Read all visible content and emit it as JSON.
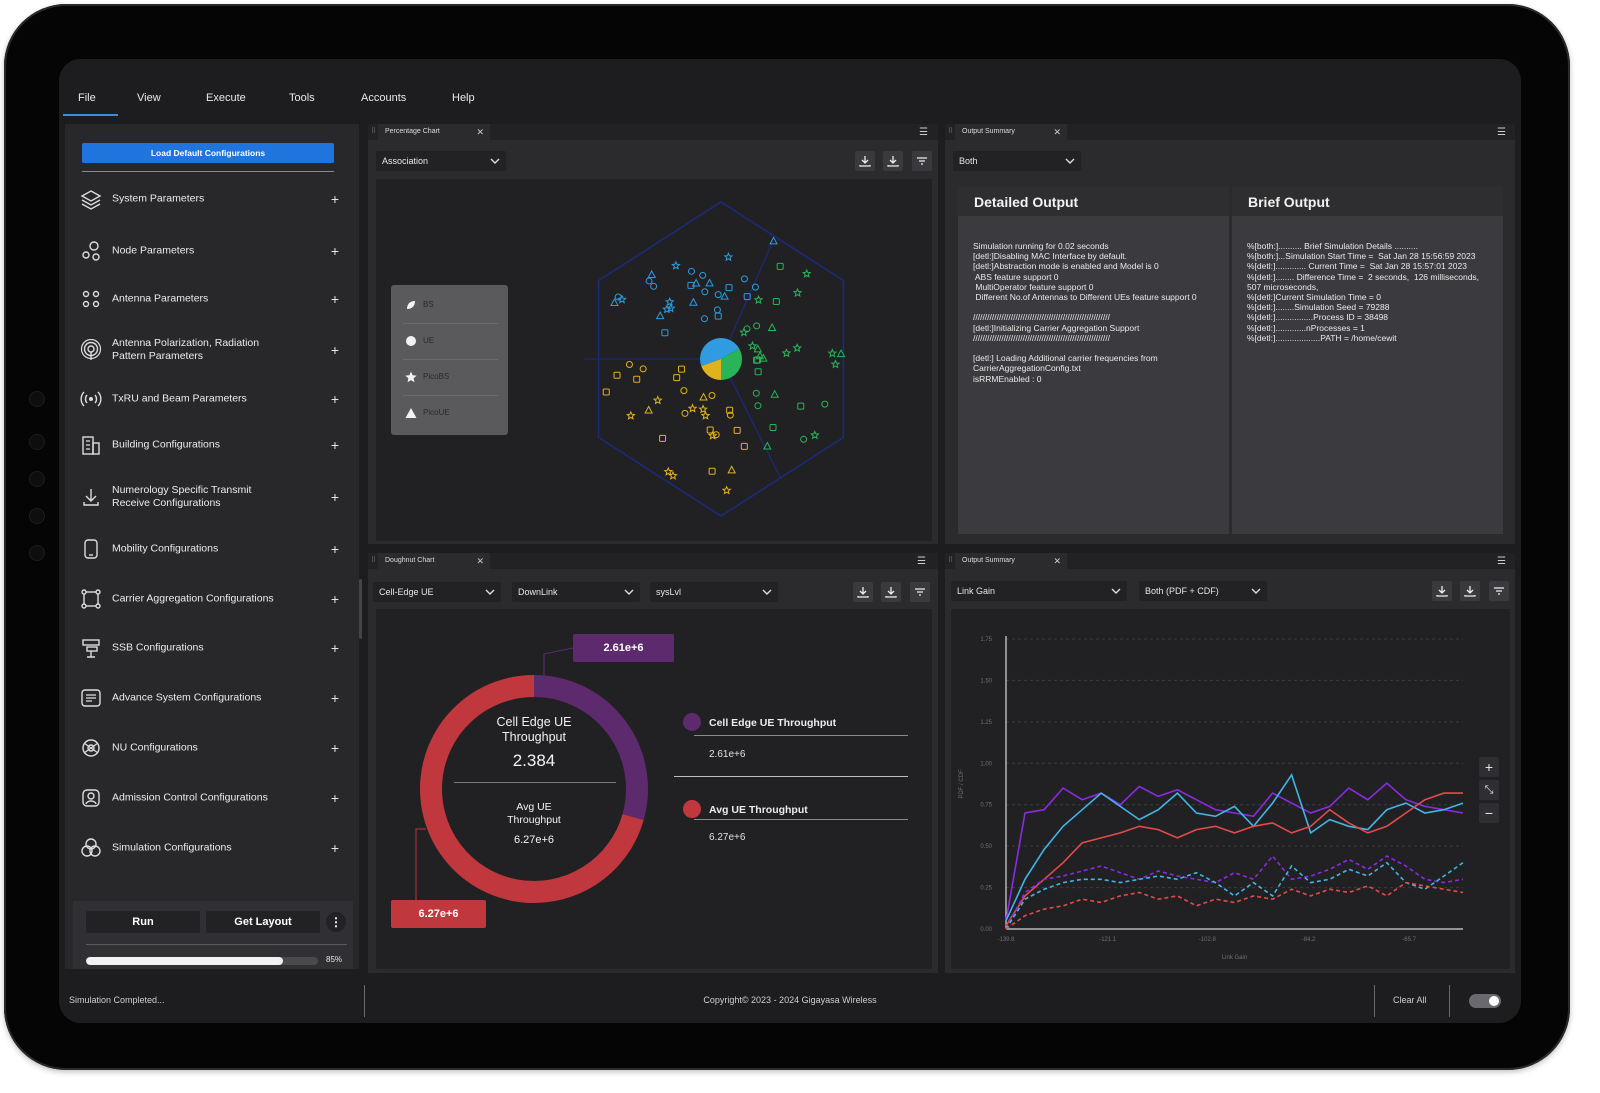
{
  "menu": {
    "items": [
      "File",
      "View",
      "Execute",
      "Tools",
      "Accounts",
      "Help"
    ],
    "active": "File"
  },
  "sidebar": {
    "load_button": "Load Default Configurations",
    "items": [
      {
        "label": "System Parameters",
        "icon": "layers-icon"
      },
      {
        "label": "Node Parameters",
        "icon": "nodes-icon"
      },
      {
        "label": "Antenna Parameters",
        "icon": "antenna-grid-icon"
      },
      {
        "label": "Antenna Polarization, Radiation\nPattern Parameters",
        "icon": "radiation-icon"
      },
      {
        "label": "TxRU and Beam Parameters",
        "icon": "broadcast-icon"
      },
      {
        "label": "Building Configurations",
        "icon": "building-icon"
      },
      {
        "label": "Numerology Specific Transmit\nReceive Configurations",
        "icon": "download-arrow-icon"
      },
      {
        "label": "Mobility Configurations",
        "icon": "mobile-icon"
      },
      {
        "label": "Carrier Aggregation Configurations",
        "icon": "aggregation-icon"
      },
      {
        "label": "SSB Configurations",
        "icon": "ssb-icon"
      },
      {
        "label": "Advance System Configurations",
        "icon": "settings-panel-icon"
      },
      {
        "label": "NU Configurations",
        "icon": "network-icon"
      },
      {
        "label": "Admission Control Configurations",
        "icon": "shield-user-icon"
      },
      {
        "label": "Simulation Configurations",
        "icon": "circles-icon"
      }
    ],
    "run_label": "Run",
    "layout_label": "Get Layout",
    "more_label": "⋮",
    "progress_value": 85,
    "progress_label": "85%"
  },
  "percentage_panel": {
    "tab": "Percentage Chart",
    "select": "Association",
    "legend": [
      {
        "label": "BS",
        "icon": "leaf-icon"
      },
      {
        "label": "UE",
        "icon": "circle-icon"
      },
      {
        "label": "PicoBS",
        "icon": "star-icon"
      },
      {
        "label": "PicoUE",
        "icon": "triangle-icon"
      }
    ],
    "colors": {
      "blue": "#2f9be0",
      "green": "#29b457",
      "yellow": "#e0b31c",
      "hex": "#1b2a7a"
    }
  },
  "output_panel": {
    "tab": "Output Summary",
    "select": "Both",
    "detailed_title": "Detailed Output",
    "detailed_text": "Simulation running for 0.02 seconds\n[detl:]Disabling MAC Interface by default.\n[detl:]Abstraction mode is enabled and Model is 0\n ABS feature support 0\n MultiOperator feature support 0\n Different No.of Antennas to Different UEs feature support 0\n\n//////////////////////////////////////////////////////////\n[detl:]Initializing Carrier Aggregation Support\n//////////////////////////////////////////////////////////\n\n[detl:] Loading Additional carrier frequencies from\nCarrierAggregationConfig.txt\nisRRMEnabled : 0",
    "brief_title": "Brief Output",
    "brief_text": "%[both:].......... Brief Simulation Details ..........\n%[both:]...Simulation Start Time =  Sat Jan 28 15:56:59 2023\n%[detl:]............. Current Time =  Sat Jan 28 15:57:01 2023\n%[detl:]........ Difference Time =  2 seconds,  126 milliseconds,\n507 microseconds,\n%[detl:]Current Simulation Time = 0\n%[detl:]........Simulation Seed = 79288\n%[detl:]................Process ID = 38498\n%[detl:].............nProcesses = 1\n%[detl:]...................PATH = /home/cewit"
  },
  "doughnut_panel": {
    "tab": "Doughnut Chart",
    "selects": [
      "Cell-Edge UE",
      "DownLink",
      "sysLvl"
    ],
    "center_title": "Cell Edge UE\nThroughput",
    "center_value": "2.384",
    "center_sub": "Avg UE\nThroughput",
    "center_sub_value": "6.27e+6",
    "callout_top": "2.61e+6",
    "callout_bottom": "6.27e+6",
    "legend": [
      {
        "label": "Cell Edge UE Throughput",
        "value": "2.61e+6",
        "color": "#5e2a6e"
      },
      {
        "label": "Avg UE Throughput",
        "value": "6.27e+6",
        "color": "#c0373e"
      }
    ]
  },
  "linechart_panel": {
    "tab": "Output Summary",
    "selects": [
      "Link Gain",
      "Both (PDF + CDF)"
    ],
    "zoom": [
      "+",
      "⤡",
      "−"
    ]
  },
  "chart_data": [
    {
      "type": "pie",
      "categories": [
        "Cell Edge UE Throughput",
        "Avg UE Throughput"
      ],
      "values": [
        2610000.0,
        6270000.0
      ],
      "title": "",
      "colors": [
        "#5e2a6e",
        "#c0373e"
      ]
    },
    {
      "type": "line",
      "xlabel": "Link Gain",
      "ylabel": "PDF / CDF",
      "x": [
        -139.8,
        -136.3,
        -132.8,
        -129.3,
        -125.8,
        -122.3,
        -118.8,
        -115.3,
        -111.8,
        -108.3,
        -104.8,
        -101.3,
        -97.8,
        -94.3,
        -90.8,
        -87.3,
        -83.8,
        -80.3,
        -76.8,
        -73.3,
        -69.8,
        -66.3,
        -62.8,
        -59.3,
        -55.8
      ],
      "x_ticks": [
        "-139.8",
        "-121.1",
        "-102.8",
        "-84.2",
        "-65.7"
      ],
      "y_ticks": [
        "0.00",
        "0.25",
        "0.50",
        "0.75",
        "1.00",
        "1.25",
        "1.50",
        "1.75"
      ],
      "ylim": [
        0,
        1.75
      ],
      "grid": true,
      "series": [
        {
          "color": "#8a2be2",
          "style": "solid",
          "values": [
            0.05,
            0.7,
            0.72,
            0.85,
            0.78,
            0.82,
            0.75,
            0.86,
            0.8,
            0.84,
            0.78,
            0.72,
            0.7,
            0.68,
            0.82,
            0.76,
            0.7,
            0.74,
            0.85,
            0.78,
            0.88,
            0.78,
            0.74,
            0.72,
            0.7
          ]
        },
        {
          "color": "#3fb6e6",
          "style": "solid",
          "values": [
            0.05,
            0.3,
            0.48,
            0.62,
            0.72,
            0.82,
            0.74,
            0.66,
            0.72,
            0.82,
            0.7,
            0.68,
            0.74,
            0.62,
            0.76,
            0.93,
            0.58,
            0.66,
            0.62,
            0.6,
            0.72,
            0.76,
            0.7,
            0.72,
            0.76
          ]
        },
        {
          "color": "#e34b4b",
          "style": "solid",
          "values": [
            0.02,
            0.2,
            0.3,
            0.4,
            0.52,
            0.55,
            0.58,
            0.62,
            0.6,
            0.55,
            0.6,
            0.62,
            0.58,
            0.62,
            0.64,
            0.58,
            0.62,
            0.72,
            0.64,
            0.58,
            0.62,
            0.7,
            0.78,
            0.82,
            0.82
          ]
        },
        {
          "color": "#8a2be2",
          "style": "dashed",
          "values": [
            0.0,
            0.22,
            0.3,
            0.32,
            0.35,
            0.38,
            0.34,
            0.3,
            0.35,
            0.32,
            0.3,
            0.28,
            0.34,
            0.3,
            0.44,
            0.3,
            0.32,
            0.36,
            0.42,
            0.36,
            0.44,
            0.38,
            0.3,
            0.28,
            0.3
          ]
        },
        {
          "color": "#3fb6e6",
          "style": "dashed",
          "values": [
            0.0,
            0.18,
            0.24,
            0.28,
            0.3,
            0.3,
            0.28,
            0.3,
            0.32,
            0.3,
            0.34,
            0.28,
            0.2,
            0.28,
            0.2,
            0.38,
            0.28,
            0.3,
            0.36,
            0.32,
            0.4,
            0.28,
            0.24,
            0.32,
            0.4
          ]
        },
        {
          "color": "#e34b4b",
          "style": "dashed",
          "values": [
            0.0,
            0.08,
            0.12,
            0.14,
            0.18,
            0.16,
            0.2,
            0.22,
            0.18,
            0.2,
            0.14,
            0.18,
            0.16,
            0.2,
            0.18,
            0.24,
            0.2,
            0.24,
            0.22,
            0.26,
            0.2,
            0.28,
            0.26,
            0.24,
            0.22
          ]
        }
      ]
    }
  ],
  "footer": {
    "status": "Simulation Completed...",
    "copyright": "Copyright© 2023 - 2024 Gigayasa Wireless",
    "clear_all": "Clear All"
  }
}
